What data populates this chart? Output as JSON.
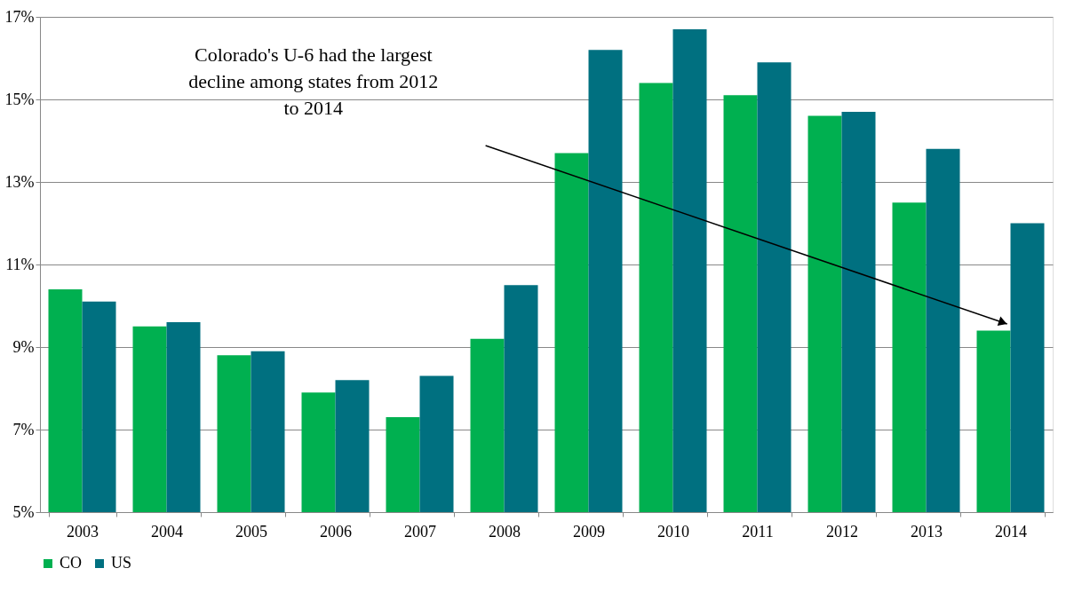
{
  "chart_data": {
    "type": "bar",
    "categories": [
      "2003",
      "2004",
      "2005",
      "2006",
      "2007",
      "2008",
      "2009",
      "2010",
      "2011",
      "2012",
      "2013",
      "2014"
    ],
    "series": [
      {
        "name": "CO",
        "color": "#00b050",
        "values": [
          10.4,
          9.5,
          8.8,
          7.9,
          7.3,
          9.2,
          13.7,
          15.4,
          15.1,
          14.6,
          12.5,
          9.4
        ]
      },
      {
        "name": "US",
        "color": "#007080",
        "values": [
          10.1,
          9.6,
          8.9,
          8.2,
          8.3,
          10.5,
          16.2,
          16.7,
          15.9,
          14.7,
          13.8,
          12.0
        ]
      }
    ],
    "ylim": [
      5,
      17
    ],
    "yticks": [
      {
        "value": 5,
        "label": "5%"
      },
      {
        "value": 7,
        "label": "7%"
      },
      {
        "value": 9,
        "label": "9%"
      },
      {
        "value": 11,
        "label": "11%"
      },
      {
        "value": 13,
        "label": "13%"
      },
      {
        "value": 15,
        "label": "15%"
      },
      {
        "value": 17,
        "label": "17%"
      }
    ],
    "annotations": [
      "Colorado's U-6 had the largest decline among states from 2012 to 2014"
    ],
    "grid": "y",
    "legend": "bottom"
  }
}
